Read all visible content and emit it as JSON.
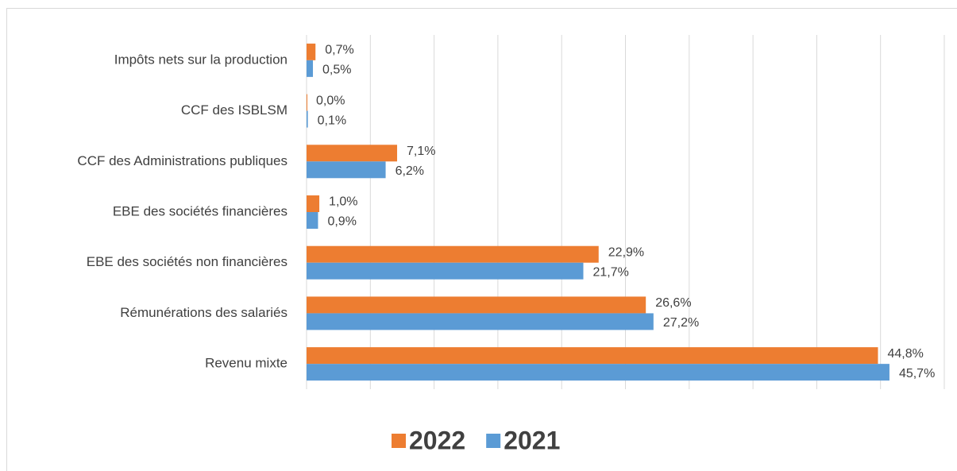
{
  "chart_data": {
    "type": "barh",
    "categories": [
      "Impôts nets sur la production",
      "CCF des ISBLSM",
      "CCF des Administrations publiques",
      "EBE des sociétés financières",
      "EBE des sociétés non financières",
      "Rémunérations des salariés",
      "Revenu mixte"
    ],
    "series": [
      {
        "name": "2022",
        "color": "#ed7d31",
        "values": [
          0.7,
          0.0,
          7.1,
          1.0,
          22.9,
          26.6,
          44.8
        ],
        "value_labels": [
          "0,7%",
          "0,0%",
          "7,1%",
          "1,0%",
          "22,9%",
          "26,6%",
          "44,8%"
        ]
      },
      {
        "name": "2021",
        "color": "#5b9bd5",
        "values": [
          0.5,
          0.1,
          6.2,
          0.9,
          21.7,
          27.2,
          45.7
        ],
        "value_labels": [
          "0,5%",
          "0,1%",
          "6,2%",
          "0,9%",
          "21,7%",
          "27,2%",
          "45,7%"
        ]
      }
    ],
    "xlim": [
      0,
      50
    ],
    "xticks": [
      0,
      5,
      10,
      15,
      20,
      25,
      30,
      35,
      40,
      45,
      50
    ],
    "grid": true,
    "legend": "bottom"
  }
}
